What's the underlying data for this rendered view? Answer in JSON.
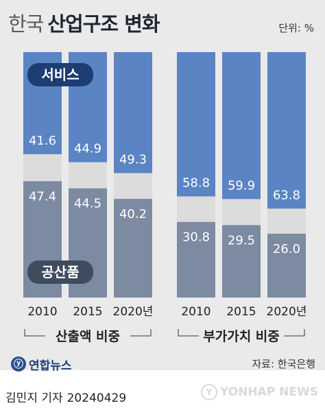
{
  "header": {
    "title_light": "한국",
    "title_bold": "산업구조 변화",
    "unit": "단위: %"
  },
  "labels": {
    "service": "서비스",
    "industry": "공산품"
  },
  "chart_data": [
    {
      "type": "bar",
      "group_label": "산출액 비중",
      "categories": [
        "2010",
        "2015",
        "2020년"
      ],
      "series": [
        {
          "name": "서비스",
          "values": [
            41.6,
            44.9,
            49.3
          ],
          "color": "#5b84c4"
        },
        {
          "name": "공산품",
          "values": [
            47.4,
            44.5,
            40.2
          ],
          "color": "#7c8aa2"
        }
      ],
      "ylim": [
        0,
        100
      ],
      "stacked": true
    },
    {
      "type": "bar",
      "group_label": "부가가치 비중",
      "categories": [
        "2010",
        "2015",
        "2020년"
      ],
      "series": [
        {
          "name": "서비스",
          "values": [
            58.8,
            59.9,
            63.8
          ],
          "color": "#5b84c4"
        },
        {
          "name": "공산품",
          "values": [
            30.8,
            29.5,
            26.0
          ],
          "color": "#7c8aa2"
        }
      ],
      "ylim": [
        0,
        100
      ],
      "stacked": true
    }
  ],
  "colors": {
    "service": "#5b84c4",
    "other": "#dcdcdc",
    "industry": "#7c8aa2",
    "badge": "#1d3d73"
  },
  "footer": {
    "logo_text": "연합뉴스",
    "source": "자료: 한국은행",
    "byline": "김민지 기자",
    "date": "20240429",
    "watermark": "YONHAP NEWS"
  }
}
